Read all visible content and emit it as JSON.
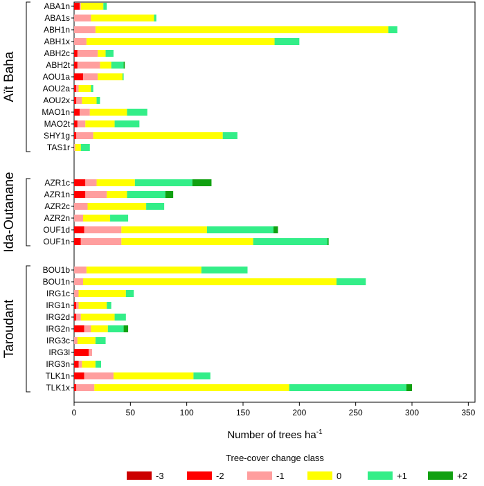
{
  "chart_data": {
    "type": "bar",
    "orientation": "horizontal",
    "stacked": true,
    "xlabel": "Number of trees ha",
    "xlabel_superscript": "-1",
    "xlim": [
      0,
      350
    ],
    "xticks": [
      0,
      50,
      100,
      150,
      200,
      250,
      300,
      350
    ],
    "legend_title": "Tree-cover change class",
    "legend_position": "bottom",
    "classes": [
      {
        "name": "-3",
        "color": "#CC0000"
      },
      {
        "name": "-2",
        "color": "#FF0000"
      },
      {
        "name": "-1",
        "color": "#FF9E9E"
      },
      {
        "name": "0",
        "color": "#FFFF00"
      },
      {
        "name": "+1",
        "color": "#33EE88"
      },
      {
        "name": "+2",
        "color": "#11A011"
      }
    ],
    "groups": [
      {
        "name": "Aït Baha",
        "rows": [
          {
            "label": "ABA1n",
            "values": [
              0,
              5,
              1,
              20,
              3,
              0
            ]
          },
          {
            "label": "ABA1s",
            "values": [
              0,
              0,
              15,
              56,
              2,
              0
            ]
          },
          {
            "label": "ABH1n",
            "values": [
              0,
              0,
              19,
              260,
              8,
              0
            ]
          },
          {
            "label": "ABH1x",
            "values": [
              0,
              0,
              11,
              167,
              22,
              0
            ]
          },
          {
            "label": "ABH2c",
            "values": [
              0,
              3,
              18,
              7,
              7,
              0
            ]
          },
          {
            "label": "ABH2t",
            "values": [
              0,
              3,
              20,
              10,
              11,
              1
            ]
          },
          {
            "label": "AOU1a",
            "values": [
              0,
              8,
              13,
              22,
              1,
              0
            ]
          },
          {
            "label": "AOU2a",
            "values": [
              0,
              2,
              2,
              11,
              2,
              0
            ]
          },
          {
            "label": "AOU2x",
            "values": [
              0,
              2,
              5,
              13,
              3,
              0
            ]
          },
          {
            "label": "MAO1n",
            "values": [
              0,
              5,
              9,
              33,
              18,
              0
            ]
          },
          {
            "label": "MAO2t",
            "values": [
              0,
              3,
              7,
              26,
              22,
              0
            ]
          },
          {
            "label": "SHY1g",
            "values": [
              0,
              2,
              15,
              115,
              13,
              0
            ]
          },
          {
            "label": "TAS1r",
            "values": [
              0,
              0,
              1,
              5,
              8,
              0
            ]
          }
        ]
      },
      {
        "name": "Ida-Outanane",
        "rows": [
          {
            "label": "AZR1c",
            "values": [
              0,
              10,
              10,
              34,
              51,
              17
            ]
          },
          {
            "label": "AZR1n",
            "values": [
              0,
              10,
              19,
              18,
              34,
              7
            ]
          },
          {
            "label": "AZR2c",
            "values": [
              0,
              0,
              12,
              52,
              16,
              0
            ]
          },
          {
            "label": "AZR2n",
            "values": [
              0,
              0,
              8,
              24,
              16,
              0
            ]
          },
          {
            "label": "OUF1d",
            "values": [
              0,
              9,
              33,
              76,
              59,
              4
            ]
          },
          {
            "label": "OUF1n",
            "values": [
              0,
              6,
              36,
              117,
              66,
              1
            ]
          }
        ]
      },
      {
        "name": "Taroudant",
        "rows": [
          {
            "label": "BOU1b",
            "values": [
              0,
              0,
              11,
              102,
              41,
              0
            ]
          },
          {
            "label": "BOU1n",
            "values": [
              0,
              0,
              8,
              225,
              26,
              0
            ]
          },
          {
            "label": "IRG1c",
            "values": [
              0,
              0,
              4,
              42,
              7,
              0
            ]
          },
          {
            "label": "IRG1n",
            "values": [
              0,
              2,
              2,
              25,
              4,
              0
            ]
          },
          {
            "label": "IRG2d",
            "values": [
              0,
              2,
              4,
              30,
              10,
              0
            ]
          },
          {
            "label": "IRG2n",
            "values": [
              0,
              9,
              6,
              15,
              14,
              4
            ]
          },
          {
            "label": "IRG3c",
            "values": [
              0,
              0,
              3,
              16,
              9,
              0
            ]
          },
          {
            "label": "IRG3l",
            "values": [
              0,
              13,
              3,
              0,
              0,
              0
            ]
          },
          {
            "label": "IRG3n",
            "values": [
              0,
              4,
              3,
              12,
              5,
              0
            ]
          },
          {
            "label": "TLK1n",
            "values": [
              0,
              9,
              26,
              71,
              15,
              0
            ]
          },
          {
            "label": "TLK1x",
            "values": [
              0,
              2,
              16,
              173,
              104,
              5
            ]
          }
        ]
      }
    ]
  }
}
